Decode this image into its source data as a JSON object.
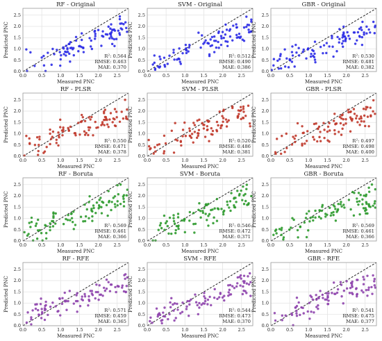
{
  "figure": {
    "x_tick_labels": [
      "0.0",
      "0.5",
      "1.0",
      "1.5",
      "2.0",
      "2.5"
    ],
    "y_tick_labels": [
      "0.0",
      "0.5",
      "1.0",
      "1.5",
      "2.0",
      "2.5"
    ]
  },
  "chart_data": [
    {
      "type": "scatter",
      "title": "RF - Original",
      "xlabel": "Measured PNC",
      "ylabel": "Predicted PNC",
      "xlim": [
        0,
        2.8
      ],
      "ylim": [
        0,
        2.8
      ],
      "grid": true,
      "reference_line": "1:1 dashed",
      "color": "#2b2be6",
      "metrics": {
        "r2_label": "R²: 0.564",
        "rmse_label": "RMSE: 0.463",
        "mae_label": "MAE: 0.370"
      },
      "series": [
        {
          "x": [],
          "y": []
        }
      ]
    },
    {
      "type": "scatter",
      "title": "SVM - Original",
      "xlabel": "Measured PNC",
      "ylabel": "Predicted PNC",
      "xlim": [
        0,
        2.8
      ],
      "ylim": [
        0,
        2.8
      ],
      "grid": true,
      "reference_line": "1:1 dashed",
      "color": "#2b2be6",
      "metrics": {
        "r2_label": "R²: 0.512",
        "rmse_label": "RMSE: 0.490",
        "mae_label": "MAE: 0.386"
      },
      "series": [
        {
          "x": [],
          "y": []
        }
      ]
    },
    {
      "type": "scatter",
      "title": "GBR - Original",
      "xlabel": "Measured PNC",
      "ylabel": "Predicted PNC",
      "xlim": [
        0,
        2.8
      ],
      "ylim": [
        0,
        2.8
      ],
      "grid": true,
      "reference_line": "1:1 dashed",
      "color": "#2b2be6",
      "metrics": {
        "r2_label": "R²: 0.530",
        "rmse_label": "RMSE: 0.481",
        "mae_label": "MAE: 0.382"
      },
      "series": [
        {
          "x": [],
          "y": []
        }
      ]
    },
    {
      "type": "scatter",
      "title": "RF - PLSR",
      "xlabel": "Measured PNC",
      "ylabel": "Predicted PNC",
      "xlim": [
        0,
        2.8
      ],
      "ylim": [
        0,
        2.8
      ],
      "grid": true,
      "reference_line": "1:1 dashed",
      "color": "#c0392b",
      "metrics": {
        "r2_label": "R²: 0.550",
        "rmse_label": "RMSE: 0.471",
        "mae_label": "MAE: 0.378"
      },
      "series": [
        {
          "x": [],
          "y": []
        }
      ]
    },
    {
      "type": "scatter",
      "title": "SVM - PLSR",
      "xlabel": "Measured PNC",
      "ylabel": "Predicted PNC",
      "xlim": [
        0,
        2.8
      ],
      "ylim": [
        0,
        2.8
      ],
      "grid": true,
      "reference_line": "1:1 dashed",
      "color": "#c0392b",
      "metrics": {
        "r2_label": "R²: 0.520",
        "rmse_label": "RMSE: 0.486",
        "mae_label": "MAE: 0.381"
      },
      "series": [
        {
          "x": [],
          "y": []
        }
      ]
    },
    {
      "type": "scatter",
      "title": "GBR - PLSR",
      "xlabel": "Measured PNC",
      "ylabel": "Predicted PNC",
      "xlim": [
        0,
        2.8
      ],
      "ylim": [
        0,
        2.8
      ],
      "grid": true,
      "reference_line": "1:1 dashed",
      "color": "#c0392b",
      "metrics": {
        "r2_label": "R²: 0.497",
        "rmse_label": "RMSE: 0.498",
        "mae_label": "MAE: 0.400"
      },
      "series": [
        {
          "x": [],
          "y": []
        }
      ]
    },
    {
      "type": "scatter",
      "title": "RF - Boruta",
      "xlabel": "Measured PNC",
      "ylabel": "Predicted PNC",
      "xlim": [
        0,
        2.8
      ],
      "ylim": [
        0,
        2.8
      ],
      "grid": true,
      "reference_line": "1:1 dashed",
      "color": "#2e9a2e",
      "metrics": {
        "r2_label": "R²: 0.569",
        "rmse_label": "RMSE: 0.461",
        "mae_label": "MAE: 0.366"
      },
      "series": [
        {
          "x": [],
          "y": []
        }
      ]
    },
    {
      "type": "scatter",
      "title": "SVM - Boruta",
      "xlabel": "Measured PNC",
      "ylabel": "Predicted PNC",
      "xlim": [
        0,
        2.8
      ],
      "ylim": [
        0,
        2.8
      ],
      "grid": true,
      "reference_line": "1:1 dashed",
      "color": "#2e9a2e",
      "metrics": {
        "r2_label": "R²: 0.546",
        "rmse_label": "RMSE: 0.472",
        "mae_label": "MAE: 0.371"
      },
      "series": [
        {
          "x": [],
          "y": []
        }
      ]
    },
    {
      "type": "scatter",
      "title": "GBR - Boruta",
      "xlabel": "Measured PNC",
      "ylabel": "Predicted PNC",
      "xlim": [
        0,
        2.8
      ],
      "ylim": [
        0,
        2.8
      ],
      "grid": true,
      "reference_line": "1:1 dashed",
      "color": "#2e9a2e",
      "metrics": {
        "r2_label": "R²: 0.569",
        "rmse_label": "RMSE: 0.461",
        "mae_label": "MAE: 0.366"
      },
      "series": [
        {
          "x": [],
          "y": []
        }
      ]
    },
    {
      "type": "scatter",
      "title": "RF - RFE",
      "xlabel": "Measured PNC",
      "ylabel": "Predicted PNC",
      "xlim": [
        0,
        2.8
      ],
      "ylim": [
        0,
        2.8
      ],
      "grid": true,
      "reference_line": "1:1 dashed",
      "color": "#8e44ad",
      "metrics": {
        "r2_label": "R²: 0.571",
        "rmse_label": "RMSE: 0.459",
        "mae_label": "MAE: 0.365"
      },
      "series": [
        {
          "x": [],
          "y": []
        }
      ]
    },
    {
      "type": "scatter",
      "title": "SVM - RFE",
      "xlabel": "Measured PNC",
      "ylabel": "Predicted PNC",
      "xlim": [
        0,
        2.8
      ],
      "ylim": [
        0,
        2.8
      ],
      "grid": true,
      "reference_line": "1:1 dashed",
      "color": "#8e44ad",
      "metrics": {
        "r2_label": "R²: 0.544",
        "rmse_label": "RMSE: 0.473",
        "mae_label": "MAE: 0.370"
      },
      "series": [
        {
          "x": [],
          "y": []
        }
      ]
    },
    {
      "type": "scatter",
      "title": "GBR - RFE",
      "xlabel": "Measured PNC",
      "ylabel": "Predicted PNC",
      "xlim": [
        0,
        2.8
      ],
      "ylim": [
        0,
        2.8
      ],
      "grid": true,
      "reference_line": "1:1 dashed",
      "color": "#8e44ad",
      "metrics": {
        "r2_label": "R²: 0.541",
        "rmse_label": "RMSE: 0.475",
        "mae_label": "MAE: 0.377"
      },
      "series": [
        {
          "x": [],
          "y": []
        }
      ]
    }
  ]
}
